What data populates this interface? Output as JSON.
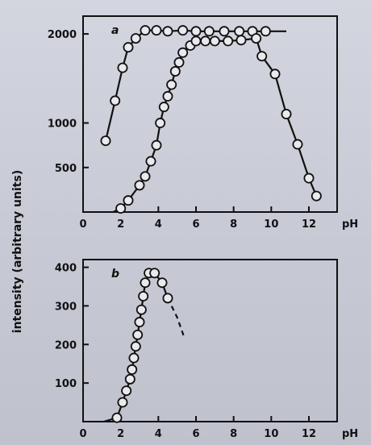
{
  "chart_data": [
    {
      "type": "line",
      "panel_label": "a",
      "xlabel": "pH",
      "ylabel": "intensity (arbitrary units)",
      "xlim": [
        0,
        13.5
      ],
      "ylim": [
        0,
        2200
      ],
      "x_ticks": [
        0,
        2,
        4,
        6,
        8,
        10,
        12
      ],
      "y_ticks": [
        500,
        1000,
        2000
      ],
      "series": [
        {
          "points": [
            [
              1.2,
              800
            ],
            [
              1.7,
              1250
            ],
            [
              2.1,
              1620
            ],
            [
              2.4,
              1850
            ],
            [
              2.8,
              1950
            ],
            [
              3.3,
              2040
            ],
            [
              3.9,
              2040
            ],
            [
              4.5,
              2030
            ],
            [
              5.3,
              2040
            ],
            [
              6.0,
              2030
            ],
            [
              6.7,
              2030
            ],
            [
              7.5,
              2030
            ],
            [
              8.3,
              2030
            ],
            [
              9.0,
              2030
            ],
            [
              9.7,
              2030
            ]
          ],
          "line_extension": [
            [
              10.8,
              2030
            ]
          ]
        },
        {
          "points": [
            [
              2.0,
              40
            ],
            [
              2.4,
              130
            ],
            [
              3.0,
              300
            ],
            [
              3.3,
              400
            ],
            [
              3.6,
              570
            ],
            [
              3.9,
              750
            ],
            [
              4.1,
              1000
            ],
            [
              4.3,
              1180
            ],
            [
              4.5,
              1300
            ],
            [
              4.7,
              1430
            ],
            [
              4.9,
              1580
            ],
            [
              5.1,
              1680
            ],
            [
              5.3,
              1790
            ],
            [
              5.7,
              1870
            ],
            [
              6.0,
              1920
            ],
            [
              6.5,
              1920
            ],
            [
              7.0,
              1920
            ],
            [
              7.7,
              1920
            ],
            [
              8.4,
              1930
            ],
            [
              9.2,
              1950
            ],
            [
              9.5,
              1750
            ],
            [
              10.2,
              1550
            ],
            [
              10.8,
              1100
            ],
            [
              11.4,
              760
            ],
            [
              12.0,
              380
            ],
            [
              12.4,
              180
            ]
          ],
          "line_start": [
            [
              1.6,
              0
            ]
          ]
        }
      ]
    },
    {
      "type": "line",
      "panel_label": "b",
      "xlabel": "pH",
      "ylabel": "intensity (arbitrary units)",
      "xlim": [
        0,
        13.5
      ],
      "ylim": [
        0,
        420
      ],
      "x_ticks": [
        0,
        2,
        4,
        6,
        8,
        10,
        12
      ],
      "y_ticks": [
        100,
        200,
        300,
        400
      ],
      "series": [
        {
          "points": [
            [
              1.8,
              10
            ],
            [
              2.1,
              50
            ],
            [
              2.3,
              80
            ],
            [
              2.5,
              110
            ],
            [
              2.6,
              135
            ],
            [
              2.7,
              165
            ],
            [
              2.8,
              195
            ],
            [
              2.9,
              225
            ],
            [
              3.0,
              258
            ],
            [
              3.1,
              290
            ],
            [
              3.2,
              325
            ],
            [
              3.3,
              360
            ],
            [
              3.5,
              385
            ],
            [
              3.8,
              385
            ],
            [
              4.2,
              360
            ],
            [
              4.5,
              320
            ]
          ],
          "line_start": [
            [
              1.1,
              0
            ]
          ],
          "dashed_extension": [
            [
              5.0,
              270
            ],
            [
              5.4,
              215
            ]
          ]
        }
      ]
    }
  ]
}
